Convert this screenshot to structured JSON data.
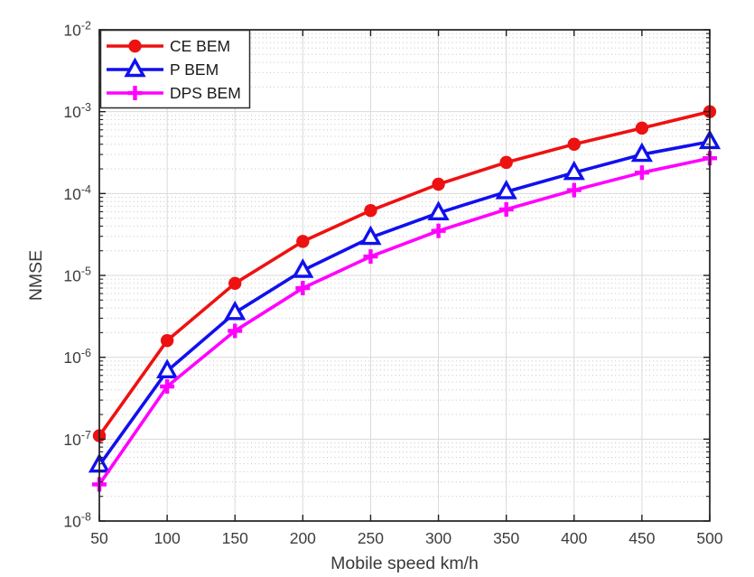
{
  "chart_data": {
    "type": "line",
    "title": "",
    "xlabel": "Mobile speed km/h",
    "ylabel": "NMSE",
    "x_scale": "linear",
    "y_scale": "log",
    "xlim": [
      50,
      500
    ],
    "x_ticks": [
      50,
      100,
      150,
      200,
      250,
      300,
      350,
      400,
      450,
      500
    ],
    "ylim": [
      1e-08,
      0.01
    ],
    "y_tick_exponents": [
      -2,
      -3,
      -4,
      -5,
      -6,
      -7,
      -8
    ],
    "grid": "major-solid-plus-log-minor-dotted",
    "legend_position": "top-left-inside",
    "x": [
      50,
      100,
      150,
      200,
      250,
      300,
      350,
      400,
      450,
      500
    ],
    "series": [
      {
        "name": "CE BEM",
        "color": "#ee1111",
        "marker": "circle",
        "values": [
          1.1e-07,
          1.6e-06,
          8e-06,
          2.6e-05,
          6.2e-05,
          0.00013,
          0.00024,
          0.0004,
          0.00063,
          0.001
        ]
      },
      {
        "name": "P BEM",
        "color": "#1010ee",
        "marker": "triangle-up",
        "values": [
          4.8e-08,
          6.8e-07,
          3.5e-06,
          1.15e-05,
          2.9e-05,
          5.8e-05,
          0.000105,
          0.00018,
          0.0003,
          0.00043
        ]
      },
      {
        "name": "DPS BEM",
        "color": "#ff00ff",
        "marker": "plus",
        "values": [
          2.8e-08,
          4.4e-07,
          2.1e-06,
          7e-06,
          1.7e-05,
          3.5e-05,
          6.4e-05,
          0.00011,
          0.00018,
          0.00027
        ]
      }
    ],
    "colors": {
      "axis_box": "#1f1f1f",
      "tick_label": "#3d3d3d",
      "grid_major": "#d9d9d9",
      "grid_minor": "#c3c3c3",
      "legend_border": "#2a2a2a",
      "legend_bg": "#ffffff"
    }
  }
}
